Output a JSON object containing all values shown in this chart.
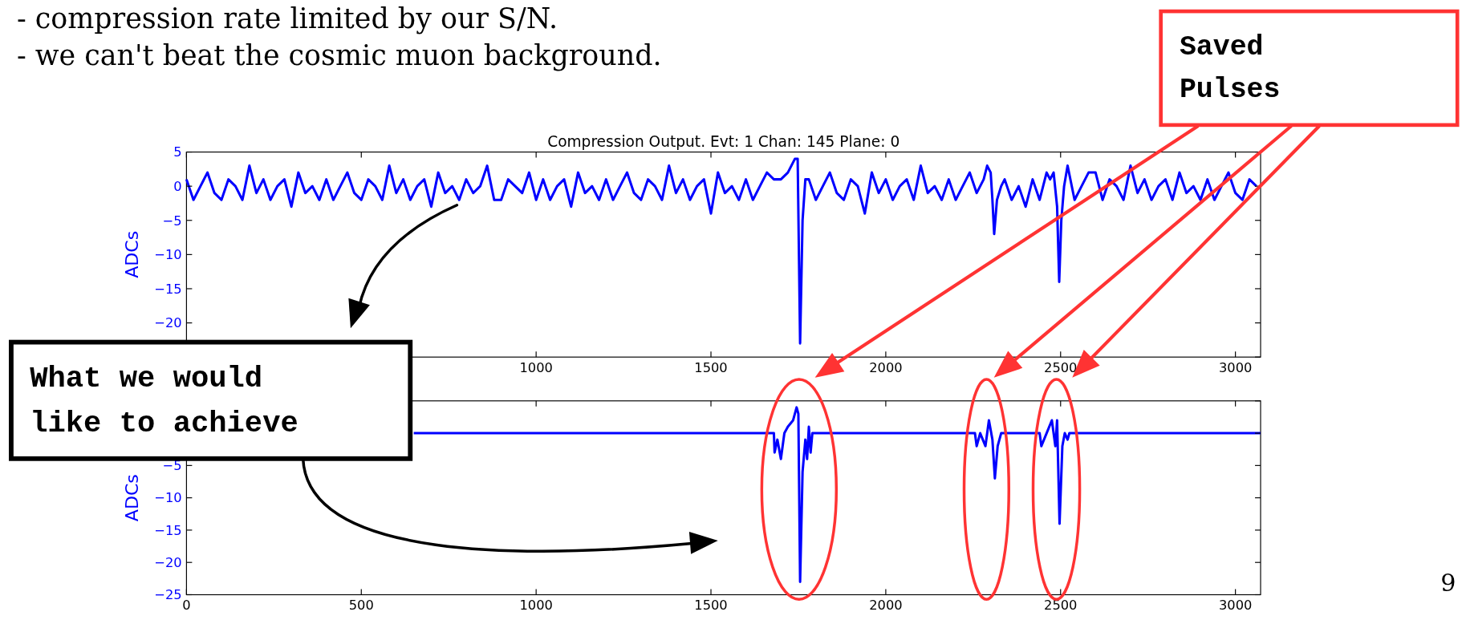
{
  "chart_data": [
    {
      "type": "line",
      "title": "Compression Output. Evt: 1  Chan: 145  Plane: 0",
      "ylabel": "ADCs",
      "annotations": [
        "- compression rate limited by our S/N.",
        "- we can't beat the cosmic muon background."
      ],
      "xlim": [
        0,
        3072
      ],
      "ylim": [
        -25,
        5
      ],
      "xticks": [
        {
          "value": 0,
          "label": null
        },
        {
          "value": 500,
          "label": null
        },
        1000,
        1500,
        2000,
        2500,
        3000
      ],
      "yticks": [
        {
          "value": -25,
          "label": null
        },
        -20,
        -15,
        -10,
        -5,
        0,
        5
      ],
      "tick_labels": "xy",
      "series": [
        {
          "color": "#0000ff",
          "x": [
            0,
            20,
            40,
            60,
            80,
            100,
            120,
            140,
            160,
            180,
            200,
            220,
            240,
            260,
            280,
            300,
            320,
            340,
            360,
            380,
            400,
            420,
            440,
            460,
            480,
            500,
            520,
            540,
            560,
            580,
            600,
            620,
            640,
            660,
            680,
            700,
            720,
            740,
            760,
            780,
            800,
            820,
            840,
            860,
            880,
            900,
            920,
            940,
            960,
            980,
            1000,
            1020,
            1040,
            1060,
            1080,
            1100,
            1120,
            1140,
            1160,
            1180,
            1200,
            1220,
            1240,
            1260,
            1280,
            1300,
            1320,
            1340,
            1360,
            1380,
            1400,
            1420,
            1440,
            1460,
            1480,
            1500,
            1520,
            1540,
            1560,
            1580,
            1600,
            1620,
            1640,
            1660,
            1680,
            1700,
            1720,
            1740,
            1748,
            1755,
            1762,
            1770,
            1780,
            1800,
            1820,
            1840,
            1860,
            1880,
            1900,
            1920,
            1940,
            1960,
            1980,
            2000,
            2020,
            2040,
            2060,
            2080,
            2100,
            2120,
            2140,
            2160,
            2180,
            2200,
            2220,
            2240,
            2260,
            2280,
            2290,
            2300,
            2305,
            2310,
            2318,
            2330,
            2340,
            2360,
            2380,
            2400,
            2420,
            2440,
            2460,
            2470,
            2480,
            2490,
            2496,
            2502,
            2510,
            2520,
            2540,
            2560,
            2580,
            2600,
            2620,
            2640,
            2660,
            2680,
            2700,
            2720,
            2740,
            2760,
            2780,
            2800,
            2820,
            2840,
            2860,
            2880,
            2900,
            2920,
            2940,
            2960,
            2980,
            3000,
            3020,
            3040,
            3060
          ],
          "values": [
            1,
            -2,
            0,
            2,
            -1,
            -2,
            1,
            0,
            -2,
            3,
            -1,
            1,
            -2,
            0,
            1,
            -3,
            2,
            -1,
            0,
            -2,
            1,
            -2,
            0,
            2,
            -1,
            -2,
            1,
            0,
            -2,
            3,
            -1,
            1,
            -2,
            0,
            1,
            -3,
            2,
            -1,
            0,
            -2,
            1,
            -1,
            0,
            3,
            -2,
            -2,
            1,
            0,
            -1,
            2,
            -2,
            1,
            -2,
            0,
            1,
            -3,
            2,
            -1,
            0,
            -2,
            1,
            -2,
            0,
            2,
            -1,
            -2,
            1,
            0,
            -2,
            3,
            -1,
            1,
            -2,
            0,
            1,
            -4,
            2,
            -1,
            0,
            -2,
            1,
            -2,
            0,
            2,
            1,
            1,
            2,
            4,
            4,
            -23,
            -5,
            1,
            1,
            -2,
            0,
            2,
            -1,
            -2,
            1,
            0,
            -4,
            2,
            -1,
            1,
            -2,
            0,
            1,
            -2,
            3,
            -1,
            0,
            -2,
            1,
            -2,
            0,
            2,
            -1,
            1,
            3,
            2,
            -2,
            -7,
            -2,
            0,
            1,
            -2,
            0,
            -3,
            1,
            -2,
            2,
            1,
            2,
            -3,
            -14,
            -5,
            0,
            3,
            -2,
            0,
            2,
            2,
            -2,
            1,
            0,
            -2,
            3,
            -1,
            1,
            -2,
            0,
            1,
            -2,
            2,
            -1,
            0,
            -2,
            1,
            -2,
            0,
            2,
            -1,
            -2,
            1,
            0
          ]
        }
      ]
    },
    {
      "type": "line",
      "ylabel": "ADCs",
      "annotations": [
        "What we would like to achieve",
        "Saved Pulses",
        "9"
      ],
      "xlim": [
        0,
        3072
      ],
      "ylim": [
        -25,
        5
      ],
      "xticks": [
        0,
        500,
        1000,
        1500,
        2000,
        2500,
        3000
      ],
      "yticks": [
        -25,
        -20,
        -15,
        -10,
        -5,
        {
          "value": 0,
          "label": null
        },
        {
          "value": 5,
          "label": null
        }
      ],
      "series": [
        {
          "color": "#0000ff",
          "x": [
            650,
            1680,
            1682,
            1690,
            1700,
            1710,
            1720,
            1735,
            1745,
            1750,
            1755,
            1762,
            1770,
            1775,
            1780,
            1785,
            1790,
            2255,
            2260,
            2270,
            2285,
            2295,
            2305,
            2312,
            2320,
            2330,
            2440,
            2445,
            2460,
            2475,
            2485,
            2490,
            2497,
            2505,
            2512,
            2520,
            2525,
            3072
          ],
          "values": [
            0,
            0,
            -3,
            -1,
            -4,
            0,
            1,
            2,
            4,
            3,
            -23,
            -6,
            -1,
            -4,
            1,
            -3,
            0,
            0,
            -2,
            0,
            -2,
            2,
            -1,
            -7,
            -2,
            0,
            0,
            -2,
            0,
            2,
            -2,
            2,
            -14,
            -2,
            0,
            -1,
            0,
            0
          ]
        }
      ]
    }
  ]
}
